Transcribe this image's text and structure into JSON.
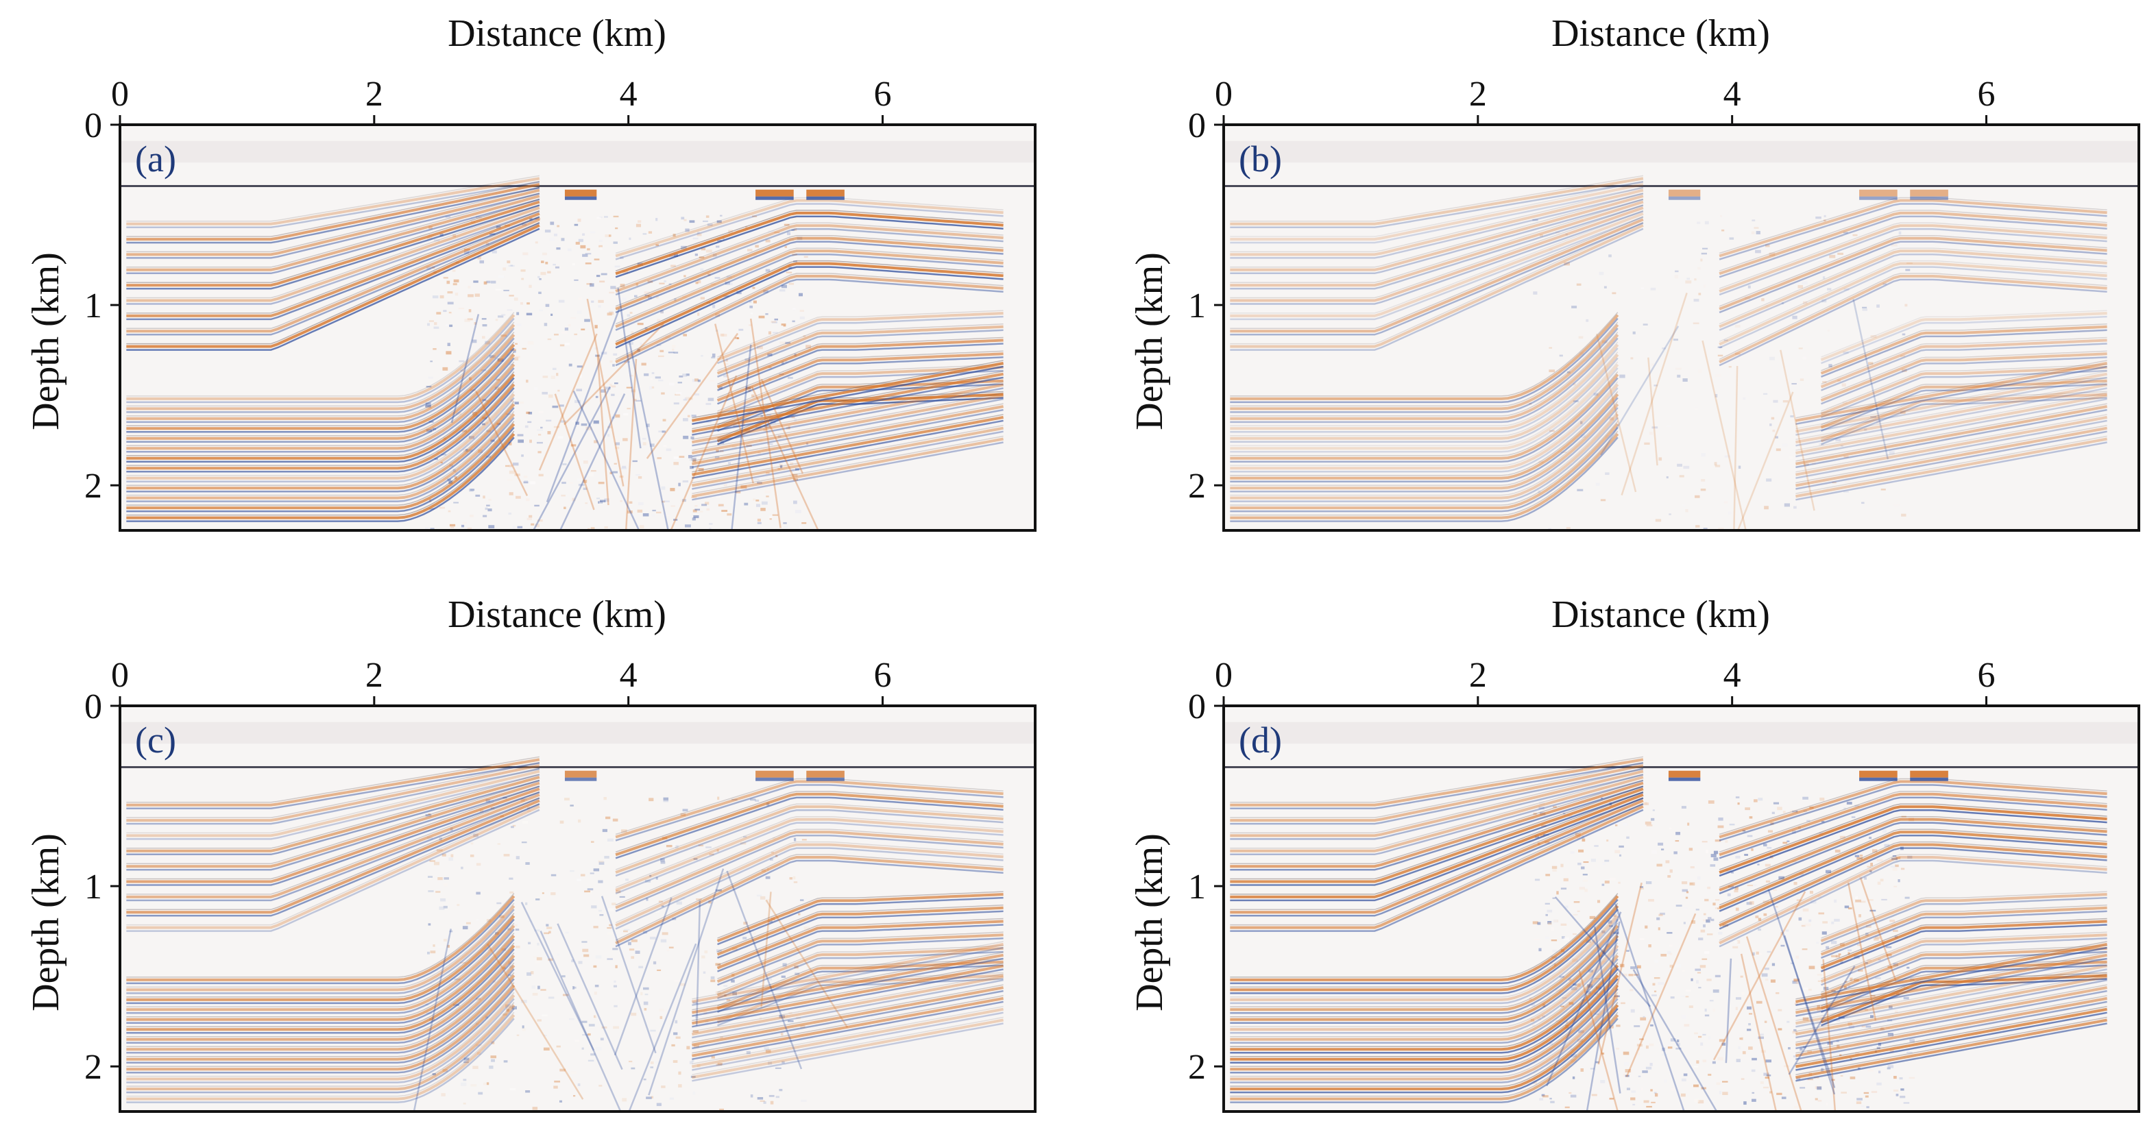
{
  "chart_data": [
    {
      "type": "heatmap",
      "panel_label": "(a)",
      "xlabel": "Distance (km)",
      "ylabel": "Depth (km)",
      "x_ticks": [
        "0",
        "2",
        "4",
        "6"
      ],
      "y_ticks": [
        "0",
        "1",
        "2"
      ],
      "xlim": [
        0,
        7.2
      ],
      "ylim": [
        0,
        2.25
      ],
      "y_inverted": true,
      "x_axis_position": "top",
      "grid": false,
      "colormap": [
        "#2b4a9a",
        "#ffffff",
        "#d4742a"
      ],
      "amplitude": 1.0,
      "noise": 0.55
    },
    {
      "type": "heatmap",
      "panel_label": "(b)",
      "xlabel": "Distance (km)",
      "ylabel": "Depth (km)",
      "x_ticks": [
        "0",
        "2",
        "4",
        "6"
      ],
      "y_ticks": [
        "0",
        "1",
        "2"
      ],
      "xlim": [
        0,
        7.2
      ],
      "ylim": [
        0,
        2.25
      ],
      "y_inverted": true,
      "x_axis_position": "top",
      "grid": false,
      "colormap": [
        "#2b4a9a",
        "#ffffff",
        "#d4742a"
      ],
      "amplitude": 0.6,
      "noise": 0.15
    },
    {
      "type": "heatmap",
      "panel_label": "(c)",
      "xlabel": "Distance (km)",
      "ylabel": "Depth (km)",
      "x_ticks": [
        "0",
        "2",
        "4",
        "6"
      ],
      "y_ticks": [
        "0",
        "1",
        "2"
      ],
      "xlim": [
        0,
        7.2
      ],
      "ylim": [
        0,
        2.25
      ],
      "y_inverted": true,
      "x_axis_position": "top",
      "grid": false,
      "colormap": [
        "#2b4a9a",
        "#ffffff",
        "#d4742a"
      ],
      "amplitude": 0.85,
      "noise": 0.3
    },
    {
      "type": "heatmap",
      "panel_label": "(d)",
      "xlabel": "Distance (km)",
      "ylabel": "Depth (km)",
      "x_ticks": [
        "0",
        "2",
        "4",
        "6"
      ],
      "y_ticks": [
        "0",
        "1",
        "2"
      ],
      "xlim": [
        0,
        7.2
      ],
      "ylim": [
        0,
        2.25
      ],
      "y_inverted": true,
      "x_axis_position": "top",
      "grid": false,
      "colormap": [
        "#2b4a9a",
        "#ffffff",
        "#d4742a"
      ],
      "amplitude": 1.0,
      "noise": 0.5
    }
  ]
}
